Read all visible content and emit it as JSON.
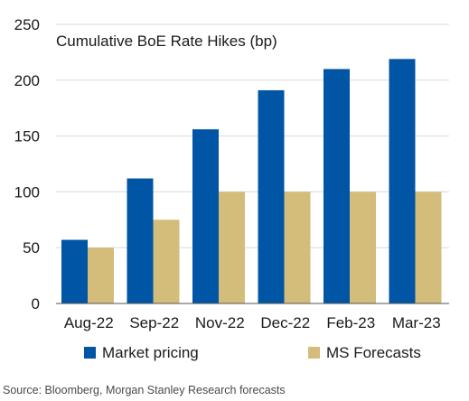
{
  "chart_data": {
    "type": "bar",
    "title": "Cumulative BoE Rate Hikes (bp)",
    "categories": [
      "Aug-22",
      "Sep-22",
      "Nov-22",
      "Dec-22",
      "Feb-23",
      "Mar-23"
    ],
    "series": [
      {
        "name": "Market pricing",
        "color": "#0055a5",
        "values": [
          57,
          112,
          156,
          191,
          210,
          219
        ]
      },
      {
        "name": "MS Forecasts",
        "color": "#d4bd7a",
        "values": [
          50,
          75,
          100,
          100,
          100,
          100
        ]
      }
    ],
    "ylim": [
      0,
      250
    ],
    "yticks": [
      0,
      50,
      100,
      150,
      200,
      250
    ],
    "grid": true,
    "legend": "bottom"
  },
  "source": "Source: Bloomberg, Morgan Stanley Research forecasts"
}
